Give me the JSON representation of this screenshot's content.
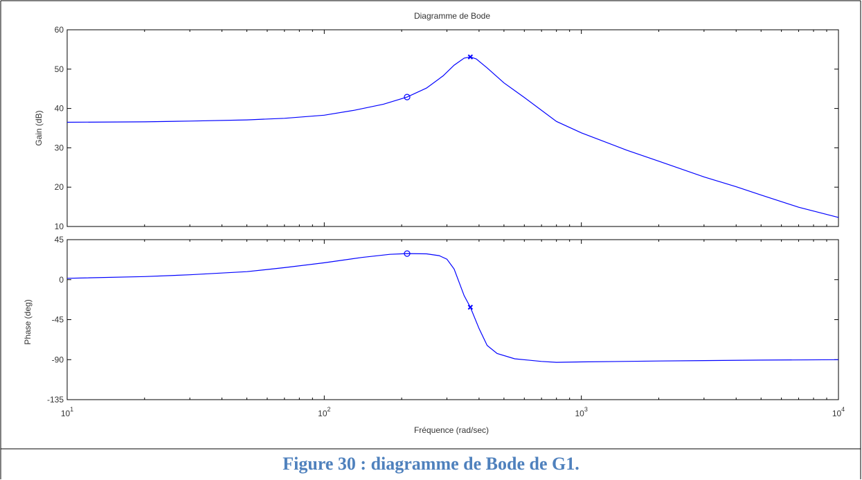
{
  "caption": "Figure 30 : diagramme de Bode de G1.",
  "chart_data": {
    "type": "line",
    "title": "Diagramme de Bode",
    "xlabel": "Fréquence (rad/sec)",
    "x_scale": "log",
    "xlim": [
      10,
      10000
    ],
    "x_tick_labels": [
      {
        "value": 10,
        "base": "10",
        "exp": "1"
      },
      {
        "value": 100,
        "base": "10",
        "exp": "2"
      },
      {
        "value": 1000,
        "base": "10",
        "exp": "3"
      },
      {
        "value": 10000,
        "base": "10",
        "exp": "4"
      }
    ],
    "line_color": "#0000ff",
    "grid": false,
    "panels": [
      {
        "name": "magnitude",
        "ylabel": "Gain (dB)",
        "ylim": [
          10,
          60
        ],
        "y_ticks": [
          10,
          20,
          30,
          40,
          50,
          60
        ],
        "points": [
          [
            10,
            36.5
          ],
          [
            20,
            36.6
          ],
          [
            30,
            36.8
          ],
          [
            50,
            37.1
          ],
          [
            70,
            37.5
          ],
          [
            100,
            38.3
          ],
          [
            130,
            39.5
          ],
          [
            170,
            41.1
          ],
          [
            210,
            42.9
          ],
          [
            250,
            45.2
          ],
          [
            290,
            48.3
          ],
          [
            320,
            51.0
          ],
          [
            350,
            52.8
          ],
          [
            370,
            53.1
          ],
          [
            390,
            52.6
          ],
          [
            430,
            50.3
          ],
          [
            500,
            46.5
          ],
          [
            600,
            42.8
          ],
          [
            800,
            36.7
          ],
          [
            1000,
            33.8
          ],
          [
            1500,
            29.4
          ],
          [
            2000,
            26.6
          ],
          [
            3000,
            22.6
          ],
          [
            4000,
            20.1
          ],
          [
            5000,
            18.0
          ],
          [
            7000,
            14.9
          ],
          [
            10000,
            12.3
          ]
        ],
        "markers": [
          {
            "x": 210,
            "y": 42.9,
            "symbol": "circle"
          },
          {
            "x": 370,
            "y": 53.1,
            "symbol": "cross"
          }
        ]
      },
      {
        "name": "phase",
        "ylabel": "Phase (deg)",
        "ylim": [
          -135,
          45
        ],
        "y_ticks": [
          -135,
          -90,
          -45,
          0,
          45
        ],
        "points": [
          [
            10,
            1.5
          ],
          [
            20,
            3.5
          ],
          [
            30,
            5.5
          ],
          [
            50,
            9
          ],
          [
            70,
            13.5
          ],
          [
            100,
            19
          ],
          [
            140,
            25
          ],
          [
            180,
            28.5
          ],
          [
            210,
            29.3
          ],
          [
            250,
            29
          ],
          [
            280,
            27
          ],
          [
            300,
            23
          ],
          [
            320,
            12
          ],
          [
            350,
            -18
          ],
          [
            370,
            -31
          ],
          [
            400,
            -55
          ],
          [
            430,
            -74
          ],
          [
            470,
            -83
          ],
          [
            550,
            -89
          ],
          [
            700,
            -92
          ],
          [
            800,
            -93
          ],
          [
            1000,
            -92.5
          ],
          [
            2000,
            -91.5
          ],
          [
            5000,
            -90.5
          ],
          [
            10000,
            -90
          ]
        ],
        "markers": [
          {
            "x": 210,
            "y": 29.3,
            "symbol": "circle"
          },
          {
            "x": 370,
            "y": -31,
            "symbol": "cross"
          }
        ]
      }
    ]
  }
}
